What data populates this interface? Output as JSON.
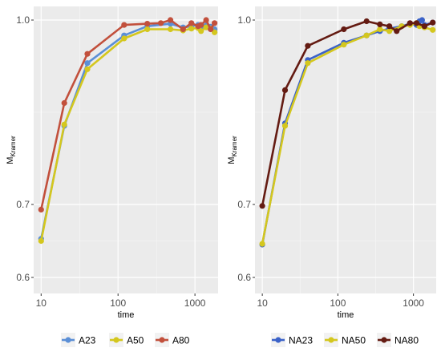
{
  "chart_data": [
    {
      "type": "line",
      "xlabel": "time",
      "ylabel_main": "M",
      "ylabel_sub": "Kramer",
      "x_scale": "log10",
      "xlim": [
        8,
        2000
      ],
      "ylim": [
        0.6,
        1.0
      ],
      "x_ticks": [
        10,
        100,
        1000
      ],
      "x_tick_labels": [
        "10",
        "100",
        "1000"
      ],
      "y_ticks": [
        0.6,
        0.7,
        1.0
      ],
      "y_tick_labels": [
        "0.6",
        "0.7",
        "1.0"
      ],
      "grid": true,
      "legend_position": "bottom",
      "series": [
        {
          "name": "A23",
          "color": "#5b8fd6",
          "x": [
            10,
            20,
            40,
            120,
            240,
            480,
            700,
            900,
            1100,
            1200,
            1400,
            1600,
            1800
          ],
          "y": [
            0.653,
            0.828,
            0.93,
            0.975,
            0.99,
            0.994,
            0.988,
            0.99,
            0.992,
            0.986,
            0.991,
            0.989,
            0.985
          ]
        },
        {
          "name": "A50",
          "color": "#d4c71e",
          "x": [
            10,
            20,
            40,
            120,
            240,
            480,
            700,
            900,
            1100,
            1200,
            1400,
            1600,
            1800
          ],
          "y": [
            0.65,
            0.83,
            0.92,
            0.97,
            0.985,
            0.985,
            0.983,
            0.986,
            0.987,
            0.982,
            0.988,
            0.986,
            0.98
          ]
        },
        {
          "name": "A80",
          "color": "#c2503c",
          "x": [
            10,
            20,
            40,
            120,
            240,
            360,
            480,
            700,
            900,
            1100,
            1200,
            1400,
            1600,
            1800
          ],
          "y": [
            0.693,
            0.865,
            0.945,
            0.992,
            0.994,
            0.995,
            1.0,
            0.985,
            0.995,
            0.99,
            0.992,
            1.0,
            0.985,
            0.995
          ]
        }
      ]
    },
    {
      "type": "line",
      "xlabel": "time",
      "ylabel_main": "M",
      "ylabel_sub": "Kramer",
      "x_scale": "log10",
      "xlim": [
        8,
        2000
      ],
      "ylim": [
        0.6,
        1.0
      ],
      "x_ticks": [
        10,
        100,
        1000
      ],
      "x_tick_labels": [
        "10",
        "100",
        "1000"
      ],
      "y_ticks": [
        0.6,
        0.7,
        1.0
      ],
      "y_tick_labels": [
        "0.6",
        "0.7",
        "1.0"
      ],
      "grid": true,
      "legend_position": "bottom",
      "series": [
        {
          "name": "NA23",
          "color": "#3b62c8",
          "x": [
            10,
            20,
            40,
            120,
            240,
            360,
            480,
            700,
            900,
            1100,
            1200,
            1300,
            1400,
            1800
          ],
          "y": [
            0.645,
            0.832,
            0.935,
            0.963,
            0.975,
            0.982,
            0.986,
            0.99,
            0.994,
            0.992,
            0.998,
            1.0,
            0.992,
            0.996
          ]
        },
        {
          "name": "NA50",
          "color": "#d4c71e",
          "x": [
            10,
            20,
            40,
            120,
            240,
            360,
            480,
            700,
            900,
            1100,
            1200,
            1400,
            1800
          ],
          "y": [
            0.646,
            0.828,
            0.93,
            0.96,
            0.975,
            0.985,
            0.982,
            0.99,
            0.992,
            0.995,
            0.99,
            0.988,
            0.984
          ]
        },
        {
          "name": "NA80",
          "color": "#641b12",
          "x": [
            10,
            20,
            40,
            120,
            240,
            360,
            480,
            600,
            900,
            1100,
            1400,
            1800
          ],
          "y": [
            0.698,
            0.886,
            0.958,
            0.985,
            0.998,
            0.993,
            0.99,
            0.982,
            0.995,
            0.995,
            0.99,
            0.996
          ]
        }
      ]
    }
  ]
}
